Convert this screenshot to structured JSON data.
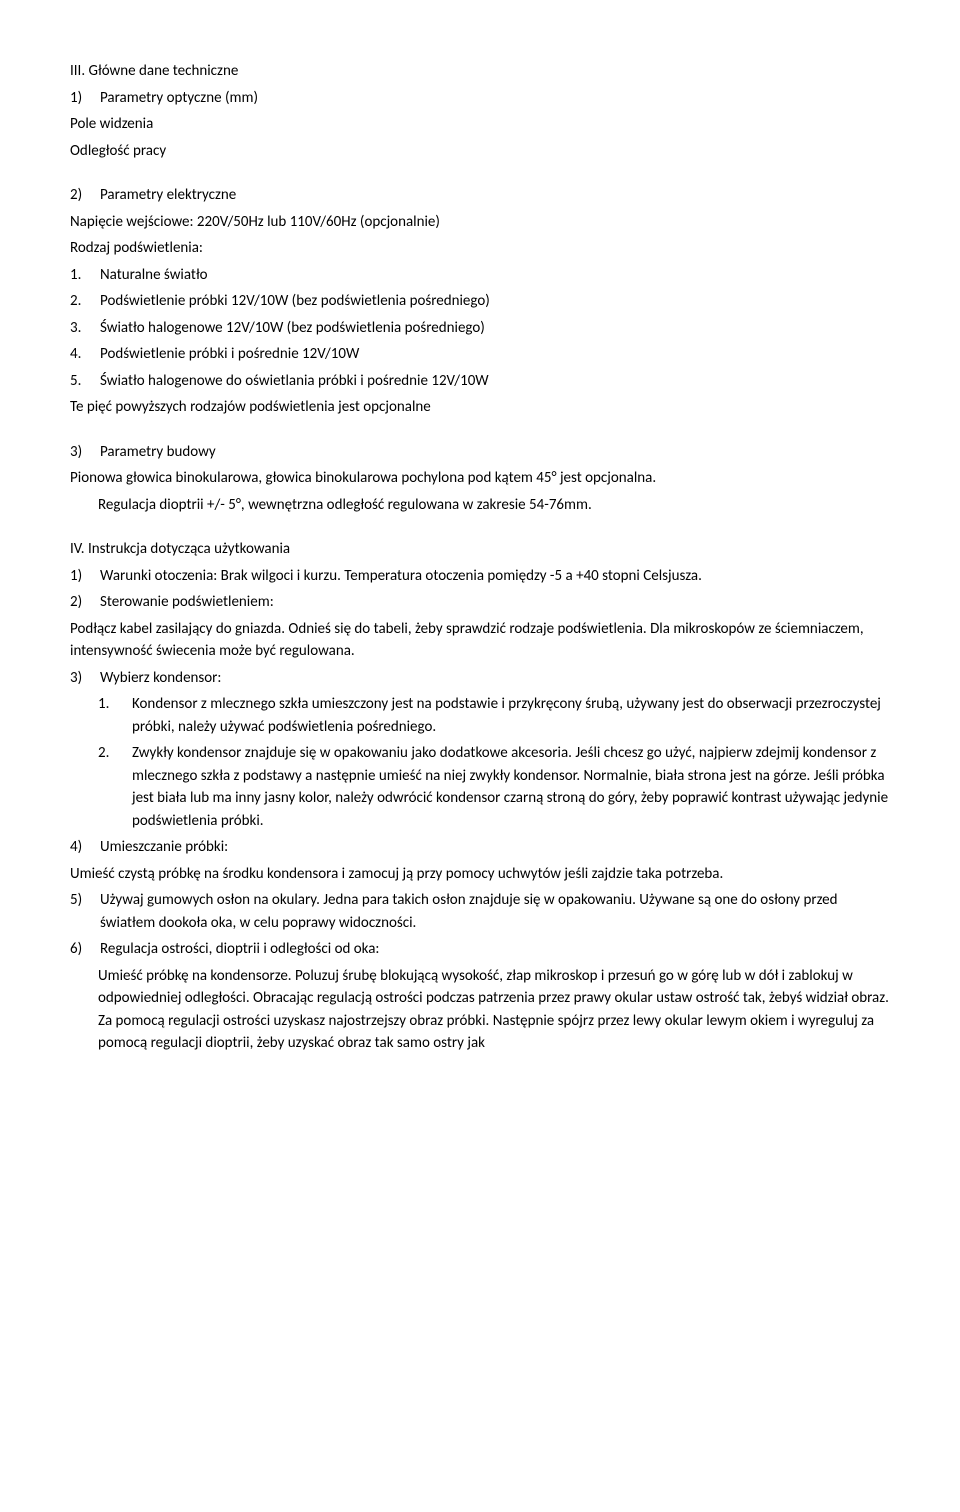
{
  "section3": {
    "title": "III. Główne dane techniczne",
    "item1_num": "1)",
    "item1": "Parametry optyczne (mm)",
    "item1_line1": "Pole widzenia",
    "item1_line2": "Odległość pracy",
    "item2_num": "2)",
    "item2": "Parametry elektryczne",
    "item2_line1": "Napięcie wejściowe: 220V/50Hz lub 110V/60Hz (opcjonalnie)",
    "item2_line2": "Rodzaj podświetlenia:",
    "sub1_num": "1.",
    "sub1": "Naturalne światło",
    "sub2_num": "2.",
    "sub2": "Podświetlenie próbki 12V/10W (bez podświetlenia pośredniego)",
    "sub3_num": "3.",
    "sub3": "Światło halogenowe 12V/10W (bez podświetlenia pośredniego)",
    "sub4_num": "4.",
    "sub4": "Podświetlenie próbki i pośrednie 12V/10W",
    "sub5_num": "5.",
    "sub5": "Światło halogenowe do oświetlania próbki i pośrednie 12V/10W",
    "note": "Te pięć powyższych rodzajów podświetlenia jest opcjonalne",
    "item3_num": "3)",
    "item3": "Parametry budowy",
    "item3_line1": "Pionowa głowica binokularowa, głowica binokularowa pochylona pod kątem 45° jest opcjonalna.",
    "item3_line2": "Regulacja dioptrii +/- 5°, wewnętrzna odległość regulowana w zakresie 54-76mm."
  },
  "section4": {
    "title": "IV. Instrukcja dotycząca użytkowania",
    "i1_num": "1)",
    "i1": "Warunki otoczenia: Brak wilgoci i kurzu. Temperatura otoczenia pomiędzy -5 a +40 stopni Celsjusza.",
    "i2_num": "2)",
    "i2": "Sterowanie podświetleniem:",
    "i2_p1": "Podłącz kabel zasilający do gniazda. Odnieś się do tabeli, żeby sprawdzić rodzaje podświetlenia. Dla mikroskopów ze ściemniaczem, intensywność świecenia może być regulowana.",
    "i3_num": "3)",
    "i3": "Wybierz kondensor:",
    "i3_s1_num": "1.",
    "i3_s1": "Kondensor z mlecznego szkła umieszczony jest na podstawie i przykręcony śrubą, używany jest do obserwacji przezroczystej próbki, należy używać podświetlenia pośredniego.",
    "i3_s2_num": "2.",
    "i3_s2": "Zwykły kondensor znajduje się w opakowaniu jako dodatkowe akcesoria. Jeśli chcesz go użyć, najpierw zdejmij kondensor z mlecznego szkła z podstawy a następnie umieść na niej zwykły kondensor. Normalnie, biała strona jest na górze. Jeśli próbka jest biała lub ma inny jasny kolor, należy odwrócić kondensor czarną stroną do góry, żeby poprawić kontrast używając jedynie podświetlenia próbki.",
    "i4_num": "4)",
    "i4": "Umieszczanie próbki:",
    "i4_p1": "Umieść czystą próbkę na środku kondensora i zamocuj ją przy pomocy uchwytów jeśli zajdzie taka potrzeba.",
    "i5_num": "5)",
    "i5": "Używaj gumowych osłon na okulary. Jedna para takich osłon znajduje się w opakowaniu. Używane są one do osłony przed światłem dookoła oka, w celu poprawy widoczności.",
    "i6_num": "6)",
    "i6": "Regulacja ostrości, dioptrii i odległości od oka:",
    "i6_p1": "Umieść próbkę na kondensorze. Poluzuj śrubę blokującą wysokość, złap mikroskop i przesuń go w górę lub w dół i zablokuj w odpowiedniej odległości. Obracając regulacją ostrości podczas patrzenia przez prawy okular ustaw ostrość tak, żebyś widział obraz. Za pomocą regulacji ostrości uzyskasz najostrzejszy obraz próbki.  Następnie spójrz przez lewy okular lewym okiem i wyreguluj za pomocą regulacji dioptrii, żeby uzyskać obraz tak samo ostry jak"
  }
}
